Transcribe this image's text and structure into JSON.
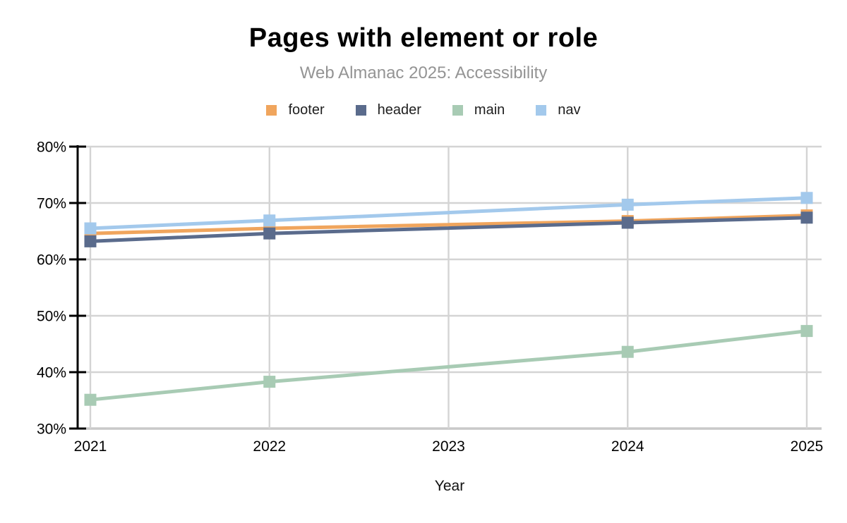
{
  "header": {
    "title": "Pages with element or role",
    "subtitle": "Web Almanac 2025: Accessibility"
  },
  "axes": {
    "x_title": "Year"
  },
  "chart_data": {
    "type": "line",
    "title": "Pages with element or role",
    "subtitle": "Web Almanac 2025: Accessibility",
    "xlabel": "Year",
    "ylabel": "",
    "x": [
      2021,
      2022,
      2024,
      2025
    ],
    "x_ticks": [
      2021,
      2022,
      2023,
      2024,
      2025
    ],
    "xlim": [
      2021,
      2025
    ],
    "ylim": [
      30,
      80
    ],
    "y_ticks": [
      30,
      40,
      50,
      60,
      70,
      80
    ],
    "y_tick_suffix": "%",
    "grid": true,
    "legend_position": "top",
    "marker": "square",
    "series": [
      {
        "name": "footer",
        "color": "#F0A55D",
        "values": [
          64.6,
          65.5,
          66.8,
          67.8
        ]
      },
      {
        "name": "header",
        "color": "#5A6B8C",
        "values": [
          63.2,
          64.6,
          66.5,
          67.4
        ]
      },
      {
        "name": "main",
        "color": "#A8CBB4",
        "values": [
          35.1,
          38.3,
          43.6,
          47.3
        ]
      },
      {
        "name": "nav",
        "color": "#A3C9EC",
        "values": [
          65.5,
          66.9,
          69.7,
          70.9
        ]
      }
    ],
    "colors": {
      "grid": "#D4D4D4",
      "x_axis_line": "#C9C9C9",
      "y_axis_line": "#000000",
      "tick_label": "#000000",
      "subtitle": "#949494"
    }
  }
}
